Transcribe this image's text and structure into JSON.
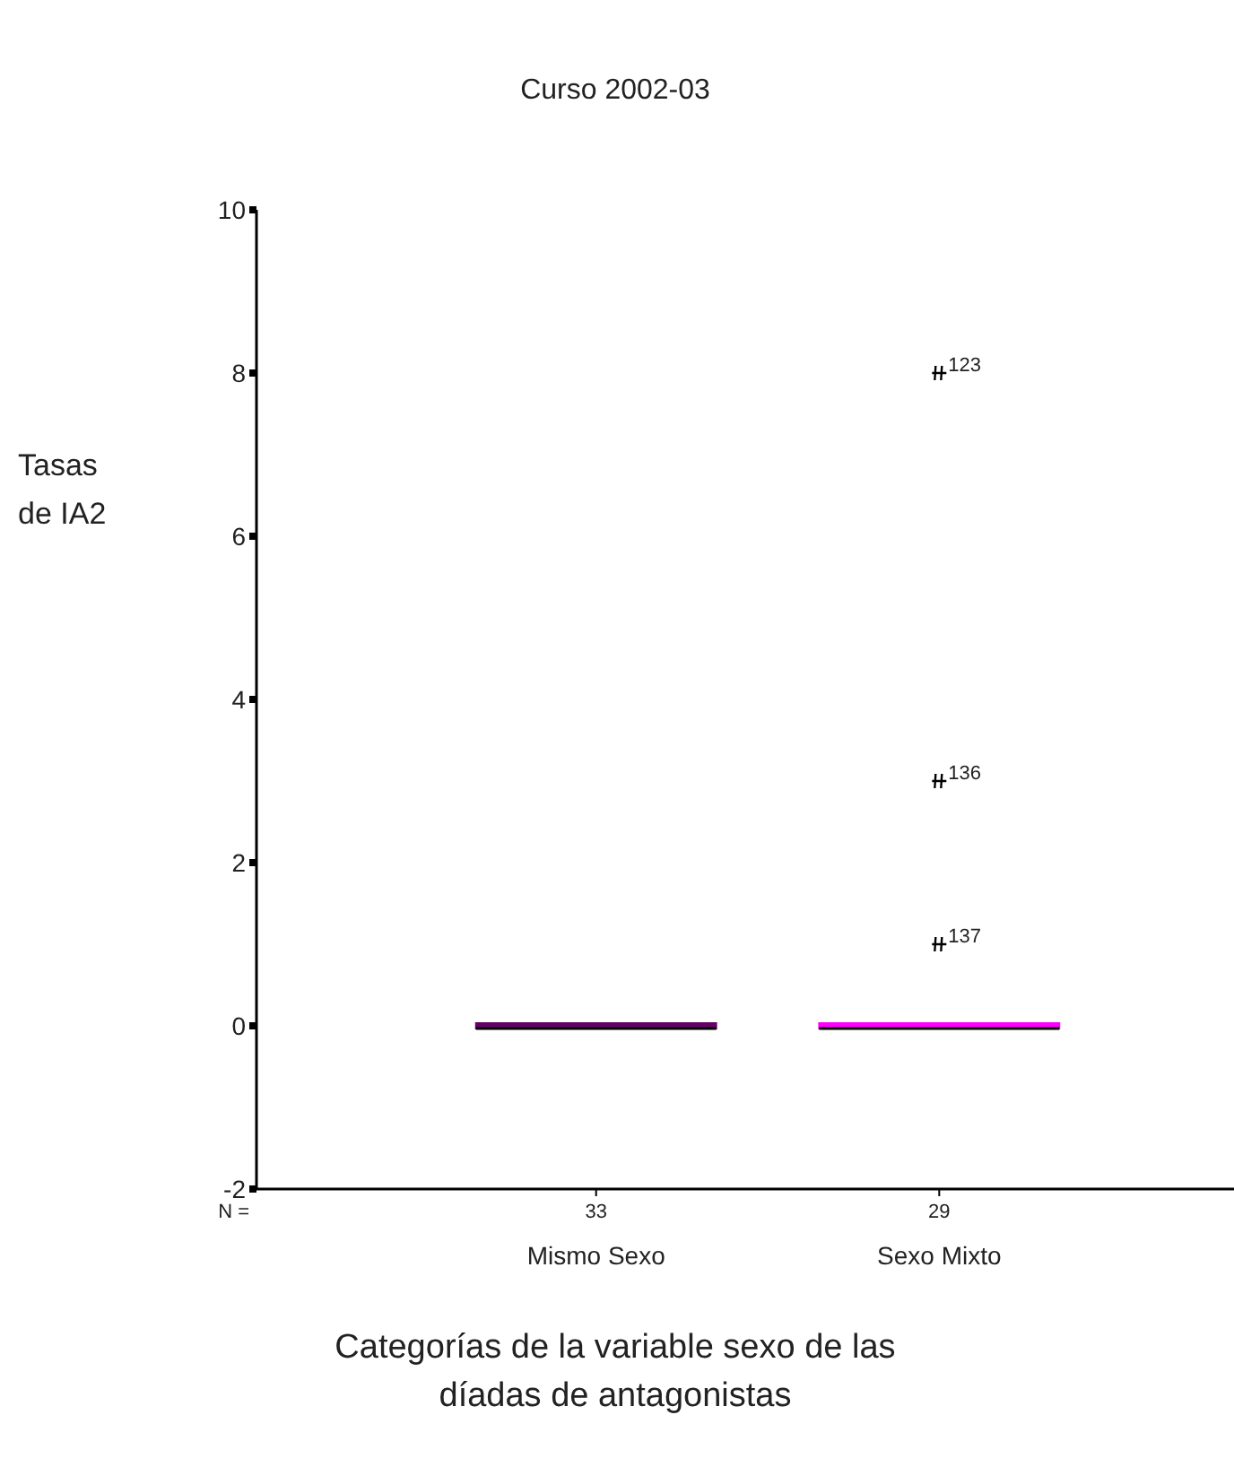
{
  "chart_data": {
    "type": "box",
    "title": "Curso 2002-03",
    "xlabel": "Categorías de la variable sexo de las díadas de antagonistas",
    "ylabel": "Tasas de IA2",
    "categories": [
      "Mismo Sexo",
      "Sexo Mixto"
    ],
    "boxes": [
      {
        "low": 0,
        "q1": 0,
        "median": 0,
        "q3": 0,
        "high": 0
      },
      {
        "low": 0,
        "q1": 0,
        "median": 0,
        "q3": 0,
        "high": 0,
        "outliers": [
          8,
          3,
          1
        ]
      }
    ],
    "colors": [
      "#660066",
      "#ff00ff"
    ],
    "ylim": [
      -2,
      10
    ],
    "yticks": [
      -2,
      0,
      2,
      4,
      6,
      8,
      10
    ],
    "marker": "star",
    "annotations": [
      "N =",
      "33",
      "29",
      "123",
      "136",
      "137"
    ]
  }
}
